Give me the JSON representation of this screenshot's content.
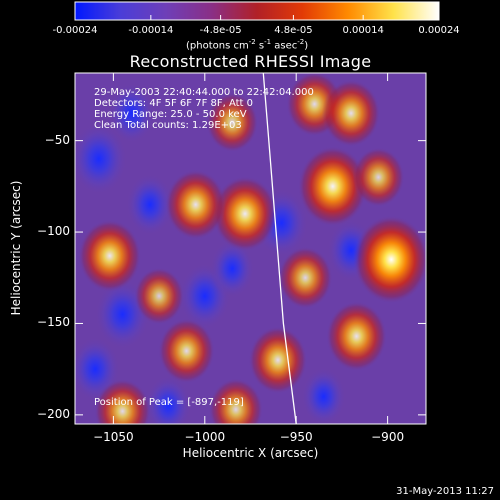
{
  "colorbar": {
    "tick_labels": [
      "-0.00024",
      "-0.00014",
      "-4.8e-05",
      "4.8e-05",
      "0.00014",
      "0.00024"
    ],
    "tick_values": [
      -0.00024,
      -0.00014,
      -4.8e-05,
      4.8e-05,
      0.00014,
      0.00024
    ],
    "range": [
      -0.00024,
      0.00024
    ],
    "units": "(photons cm",
    "units_sup1": "-2",
    "units_mid": " s",
    "units_sup2": "-1",
    "units_end": " asec",
    "units_sup3": "-2",
    "units_close": ")",
    "colors": [
      "#0018ff",
      "#4a3dd8",
      "#6e3fb8",
      "#8a2f86",
      "#b12027",
      "#e23a06",
      "#ff8a00",
      "#ffe24a",
      "#ffffff"
    ]
  },
  "chart_data": {
    "type": "heatmap",
    "title": "Reconstructed RHESSI Image",
    "xlabel": "Heliocentric X (arcsec)",
    "ylabel": "Heliocentric Y (arcsec)",
    "xlim": [
      -1071,
      -879
    ],
    "ylim": [
      -205,
      -13
    ],
    "x_ticks": [
      -1050,
      -1000,
      -950,
      -900
    ],
    "x_tick_labels": [
      "−1050",
      "−1000",
      "−950",
      "−900"
    ],
    "y_ticks": [
      -50,
      -100,
      -150,
      -200
    ],
    "y_tick_labels": [
      "−50",
      "−100",
      "−150",
      "−200"
    ],
    "info_lines": [
      "29-May-2003 22:40:44.000 to 22:42:04.000",
      "Detectors: 4F 5F 6F 7F 8F, Att 0",
      "Energy Range: 25.0 - 50.0 keV",
      "Clean     Total counts: 1.29E+03"
    ],
    "peak_label": "Position of Peak = [-897,-119]",
    "peak": [
      -897,
      -119
    ],
    "limb_curve": [
      [
        -968,
        -13
      ],
      [
        -965,
        -50
      ],
      [
        -961,
        -100
      ],
      [
        -957,
        -150
      ],
      [
        -950,
        -205
      ]
    ],
    "bright_sources": [
      {
        "x": -898,
        "y": -115,
        "level": 1.0
      },
      {
        "x": -930,
        "y": -75,
        "level": 0.85
      },
      {
        "x": -978,
        "y": -90,
        "level": 0.75
      },
      {
        "x": -1052,
        "y": -113,
        "level": 0.7
      },
      {
        "x": -1005,
        "y": -85,
        "level": 0.65
      },
      {
        "x": -960,
        "y": -170,
        "level": 0.6
      },
      {
        "x": -917,
        "y": -157,
        "level": 0.65
      },
      {
        "x": -1010,
        "y": -165,
        "level": 0.55
      },
      {
        "x": -940,
        "y": -30,
        "level": 0.55
      },
      {
        "x": -920,
        "y": -35,
        "level": 0.6
      },
      {
        "x": -985,
        "y": -40,
        "level": 0.45
      },
      {
        "x": -1045,
        "y": -198,
        "level": 0.55
      },
      {
        "x": -983,
        "y": -197,
        "level": 0.5
      },
      {
        "x": -905,
        "y": -70,
        "level": 0.45
      },
      {
        "x": -1025,
        "y": -135,
        "level": 0.4
      },
      {
        "x": -945,
        "y": -125,
        "level": 0.5
      }
    ],
    "dark_sources": [
      {
        "x": -1058,
        "y": -60,
        "level": 0.8
      },
      {
        "x": -1045,
        "y": -145,
        "level": 0.75
      },
      {
        "x": -958,
        "y": -95,
        "level": 0.7
      },
      {
        "x": -1000,
        "y": -135,
        "level": 0.65
      },
      {
        "x": -1030,
        "y": -85,
        "level": 0.55
      },
      {
        "x": -920,
        "y": -110,
        "level": 0.55
      },
      {
        "x": -1060,
        "y": -175,
        "level": 0.6
      },
      {
        "x": -985,
        "y": -120,
        "level": 0.45
      },
      {
        "x": -1040,
        "y": -35,
        "level": 0.5
      },
      {
        "x": -935,
        "y": -190,
        "level": 0.45
      },
      {
        "x": -1020,
        "y": -195,
        "level": 0.5
      }
    ]
  },
  "footer": {
    "timestamp": "31-May-2013 11:27"
  }
}
